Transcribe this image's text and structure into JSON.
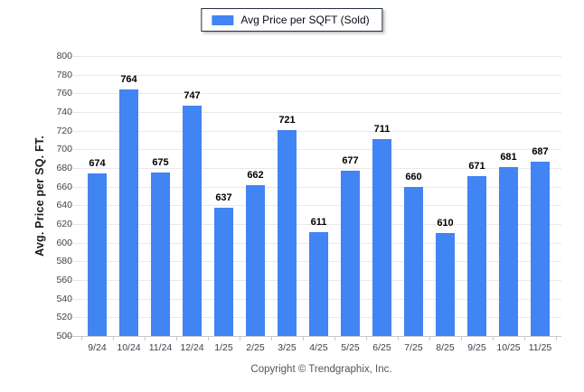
{
  "chart_data": {
    "type": "bar",
    "title": "Avg Price per SQFT (Sold)",
    "categories": [
      "9/24",
      "10/24",
      "11/24",
      "12/24",
      "1/25",
      "2/25",
      "3/25",
      "4/25",
      "5/25",
      "6/25",
      "7/25",
      "8/25",
      "9/25",
      "10/25",
      "11/25"
    ],
    "values": [
      674,
      764,
      675,
      747,
      637,
      662,
      721,
      611,
      677,
      711,
      660,
      610,
      671,
      681,
      687
    ],
    "xlabel": "",
    "ylabel": "Avg. Price per SQ. FT.",
    "ylim": [
      500,
      800
    ],
    "ytick_step": 20,
    "yticks": [
      500,
      520,
      540,
      560,
      580,
      600,
      620,
      640,
      660,
      680,
      700,
      720,
      740,
      760,
      780,
      800
    ],
    "grid": true,
    "legend_position": "top-center",
    "bar_color": "#4184F3",
    "value_labels_shown": true
  },
  "footer": {
    "text": "Copyright © Trendgraphix, Inc."
  }
}
